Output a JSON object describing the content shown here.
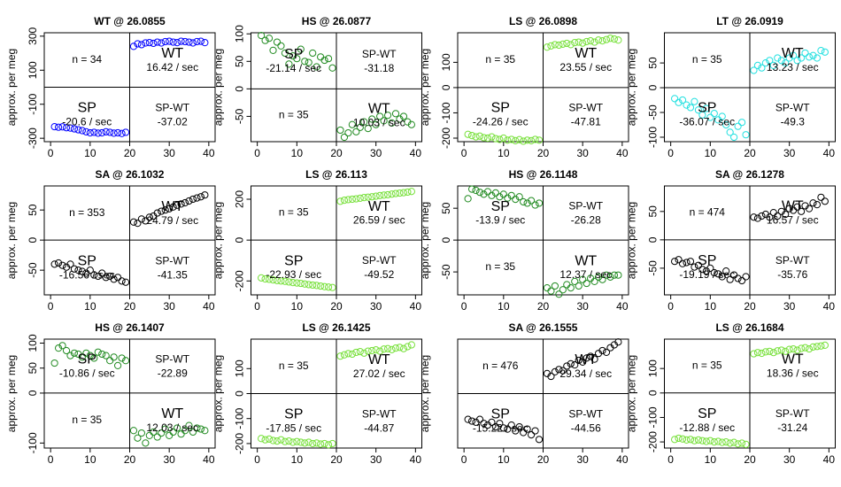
{
  "chart_data": [
    {
      "type": "scatter",
      "title": "WT @ 26.0855",
      "y_label": "approx. per meg",
      "color": "#0000ff",
      "xlim": [
        -1.6,
        41.6
      ],
      "xticks": [
        0,
        10,
        20,
        30,
        40
      ],
      "ylim": [
        -320,
        320
      ],
      "yticks": [
        -300,
        -100,
        100,
        300
      ],
      "x": [
        1,
        2,
        3,
        4,
        5,
        6,
        7,
        8,
        9,
        10,
        11,
        12,
        13,
        14,
        15,
        16,
        17,
        18,
        19,
        21,
        22,
        23,
        24,
        25,
        26,
        27,
        28,
        29,
        30,
        31,
        32,
        33,
        34,
        35,
        36,
        37,
        38,
        39
      ],
      "values": [
        -232,
        -235,
        -233,
        -238,
        -240,
        -245,
        -250,
        -255,
        -262,
        -268,
        -265,
        -270,
        -268,
        -262,
        -265,
        -270,
        -268,
        -272,
        -265,
        240,
        255,
        250,
        260,
        262,
        258,
        265,
        260,
        268,
        270,
        265,
        262,
        270,
        268,
        265,
        260,
        268,
        270,
        262
      ],
      "annotations": {
        "n": "n = 34",
        "wt": "WT",
        "wt_rate": "16.42 / sec",
        "sp": "SP",
        "sp_rate": "-20.6 / sec",
        "diff_label": "SP-WT",
        "diff": "-37.02"
      }
    },
    {
      "type": "scatter",
      "title": "HS @ 26.0877",
      "y_label": "approx. per meg",
      "color": "#228b22",
      "xlim": [
        -1.6,
        41.6
      ],
      "xticks": [
        0,
        10,
        20,
        30,
        40
      ],
      "ylim": [
        -96,
        102
      ],
      "yticks": [
        -50,
        0,
        50,
        100
      ],
      "x": [
        1,
        2,
        3,
        4,
        5,
        6,
        7,
        8,
        9,
        10,
        11,
        12,
        13,
        14,
        15,
        16,
        17,
        18,
        19,
        21,
        22,
        23,
        24,
        25,
        26,
        27,
        28,
        29,
        30,
        31,
        32,
        33,
        34,
        35,
        36,
        37,
        38,
        39
      ],
      "values": [
        97,
        88,
        92,
        70,
        85,
        78,
        65,
        45,
        60,
        55,
        72,
        50,
        48,
        65,
        40,
        58,
        52,
        55,
        38,
        -75,
        -88,
        -80,
        -65,
        -78,
        -70,
        -60,
        -72,
        -55,
        -65,
        -50,
        -58,
        -48,
        -62,
        -45,
        -55,
        -50,
        -60,
        -65
      ],
      "annotations": {
        "n": "n = 35",
        "wt": "WT",
        "wt_rate": "10.03 / sec",
        "sp": "SP",
        "sp_rate": "-21.14 / sec",
        "diff_label": "SP-WT",
        "diff": "-31.18"
      }
    },
    {
      "type": "scatter",
      "title": "LS @ 26.0898",
      "y_label": "approx. per meg",
      "color": "#77e03a",
      "xlim": [
        -1.6,
        41.6
      ],
      "xticks": [
        0,
        10,
        20,
        30,
        40
      ],
      "ylim": [
        -214,
        217
      ],
      "yticks": [
        -200,
        -100,
        0,
        100
      ],
      "x": [
        1,
        2,
        3,
        4,
        5,
        6,
        7,
        8,
        9,
        10,
        11,
        12,
        13,
        14,
        15,
        16,
        17,
        18,
        19,
        21,
        22,
        23,
        24,
        25,
        26,
        27,
        28,
        29,
        30,
        31,
        32,
        33,
        34,
        35,
        36,
        37,
        38,
        39
      ],
      "values": [
        -185,
        -190,
        -195,
        -192,
        -198,
        -200,
        -195,
        -202,
        -205,
        -200,
        -208,
        -205,
        -210,
        -206,
        -212,
        -208,
        -210,
        -205,
        -208,
        160,
        165,
        170,
        168,
        172,
        175,
        170,
        178,
        180,
        176,
        182,
        185,
        180,
        188,
        185,
        190,
        195,
        192,
        188
      ],
      "annotations": {
        "n": "n = 35",
        "wt": "WT",
        "wt_rate": "23.55 / sec",
        "sp": "SP",
        "sp_rate": "-24.26 / sec",
        "diff_label": "SP-WT",
        "diff": "-47.81"
      }
    },
    {
      "type": "scatter",
      "title": "LT @ 26.0919",
      "y_label": "approx. per meg",
      "color": "#22e0e0",
      "xlim": [
        -1.6,
        41.6
      ],
      "xticks": [
        0,
        10,
        20,
        30,
        40
      ],
      "ylim": [
        -109,
        111
      ],
      "yticks": [
        -100,
        -50,
        0,
        50
      ],
      "x": [
        1,
        2,
        3,
        4,
        5,
        6,
        7,
        8,
        9,
        10,
        11,
        12,
        13,
        14,
        15,
        16,
        17,
        18,
        19,
        21,
        22,
        23,
        24,
        25,
        26,
        27,
        28,
        29,
        30,
        31,
        32,
        33,
        34,
        35,
        36,
        37,
        38,
        39
      ],
      "values": [
        -22,
        -30,
        -25,
        -35,
        -40,
        -28,
        -45,
        -55,
        -42,
        -60,
        -52,
        -65,
        -58,
        -75,
        -90,
        -100,
        -78,
        -70,
        -95,
        35,
        45,
        40,
        50,
        55,
        45,
        60,
        55,
        50,
        60,
        65,
        55,
        60,
        70,
        62,
        65,
        60,
        75,
        72
      ],
      "annotations": {
        "n": "n = 35",
        "wt": "WT",
        "wt_rate": "13.23 / sec",
        "sp": "SP",
        "sp_rate": "-36.07 / sec",
        "diff_label": "SP-WT",
        "diff": "-49.3"
      }
    },
    {
      "type": "scatter",
      "title": "SA @ 26.1032",
      "y_label": "approx. per meg",
      "color": "#000000",
      "xlim": [
        -1.6,
        41.6
      ],
      "xticks": [
        0,
        10,
        20,
        30,
        40
      ],
      "ylim": [
        -91,
        90
      ],
      "yticks": [
        -50,
        0,
        50
      ],
      "x": [
        1,
        2,
        3,
        4,
        5,
        6,
        7,
        8,
        9,
        10,
        11,
        12,
        13,
        14,
        15,
        16,
        17,
        18,
        19,
        21,
        22,
        23,
        24,
        25,
        26,
        27,
        28,
        29,
        30,
        31,
        32,
        33,
        34,
        35,
        36,
        37,
        38,
        39
      ],
      "values": [
        -40,
        -38,
        -42,
        -45,
        -40,
        -48,
        -50,
        -52,
        -55,
        -50,
        -58,
        -60,
        -55,
        -62,
        -60,
        -65,
        -62,
        -68,
        -70,
        30,
        28,
        35,
        32,
        38,
        40,
        45,
        48,
        50,
        52,
        55,
        58,
        60,
        62,
        65,
        68,
        70,
        72,
        75
      ],
      "annotations": {
        "n": "n = 353",
        "wt": "WT",
        "wt_rate": "24.79 / sec",
        "sp": "SP",
        "sp_rate": "-16.56 / sec",
        "diff_label": "SP-WT",
        "diff": "-41.35"
      }
    },
    {
      "type": "scatter",
      "title": "LS @ 26.113",
      "y_label": "approx. per meg",
      "color": "#77e03a",
      "xlim": [
        -1.6,
        41.6
      ],
      "xticks": [
        0,
        10,
        20,
        30,
        40
      ],
      "ylim": [
        -268,
        265
      ],
      "yticks": [
        -200,
        0,
        200
      ],
      "x": [
        1,
        2,
        3,
        4,
        5,
        6,
        7,
        8,
        9,
        10,
        11,
        12,
        13,
        14,
        15,
        16,
        17,
        18,
        19,
        21,
        22,
        23,
        24,
        25,
        26,
        27,
        28,
        29,
        30,
        31,
        32,
        33,
        34,
        35,
        36,
        37,
        38,
        39
      ],
      "values": [
        -185,
        -190,
        -192,
        -195,
        -198,
        -200,
        -202,
        -205,
        -208,
        -210,
        -212,
        -215,
        -218,
        -220,
        -222,
        -225,
        -228,
        -230,
        -232,
        190,
        195,
        198,
        200,
        202,
        205,
        208,
        210,
        212,
        215,
        218,
        220,
        222,
        225,
        228,
        230,
        232,
        235,
        238
      ],
      "annotations": {
        "n": "n = 35",
        "wt": "WT",
        "wt_rate": "26.59 / sec",
        "sp": "SP",
        "sp_rate": "-22.93 / sec",
        "diff_label": "SP-WT",
        "diff": "-49.52"
      }
    },
    {
      "type": "scatter",
      "title": "HS @ 26.1148",
      "y_label": "approx. per meg",
      "color": "#228b22",
      "xlim": [
        -1.6,
        41.6
      ],
      "xticks": [
        0,
        10,
        20,
        30,
        40
      ],
      "ylim": [
        -86,
        85
      ],
      "yticks": [
        -50,
        0,
        50
      ],
      "x": [
        1,
        2,
        3,
        4,
        5,
        6,
        7,
        8,
        9,
        10,
        11,
        12,
        13,
        14,
        15,
        16,
        17,
        18,
        19,
        21,
        22,
        23,
        24,
        25,
        26,
        27,
        28,
        29,
        30,
        31,
        32,
        33,
        34,
        35,
        36,
        37,
        38,
        39
      ],
      "values": [
        65,
        80,
        78,
        75,
        72,
        76,
        70,
        74,
        68,
        72,
        66,
        70,
        64,
        68,
        60,
        58,
        62,
        55,
        58,
        -75,
        -80,
        -72,
        -85,
        -78,
        -70,
        -75,
        -65,
        -72,
        -62,
        -68,
        -60,
        -65,
        -58,
        -62,
        -55,
        -58,
        -55,
        -55
      ],
      "annotations": {
        "n": "n = 35",
        "wt": "WT",
        "wt_rate": "12.37 / sec",
        "sp": "SP",
        "sp_rate": "-13.9 / sec",
        "diff_label": "SP-WT",
        "diff": "-26.28"
      }
    },
    {
      "type": "scatter",
      "title": "SA @ 26.1278",
      "y_label": "approx. per meg",
      "color": "#000000",
      "xlim": [
        -1.6,
        41.6
      ],
      "xticks": [
        0,
        10,
        20,
        30,
        40
      ],
      "ylim": [
        -97,
        95
      ],
      "yticks": [
        -50,
        0,
        50
      ],
      "x": [
        1,
        2,
        3,
        4,
        5,
        6,
        7,
        8,
        9,
        10,
        11,
        12,
        13,
        14,
        15,
        16,
        17,
        18,
        19,
        21,
        22,
        23,
        24,
        25,
        26,
        27,
        28,
        29,
        30,
        31,
        32,
        33,
        34,
        35,
        36,
        37,
        38,
        39
      ],
      "values": [
        -38,
        -35,
        -42,
        -40,
        -38,
        -48,
        -45,
        -52,
        -55,
        -50,
        -58,
        -60,
        -65,
        -55,
        -70,
        -62,
        -68,
        -72,
        -65,
        40,
        38,
        42,
        45,
        40,
        48,
        42,
        50,
        45,
        55,
        52,
        58,
        50,
        60,
        55,
        65,
        62,
        75,
        68
      ],
      "annotations": {
        "n": "n = 474",
        "wt": "WT",
        "wt_rate": "16.57 / sec",
        "sp": "SP",
        "sp_rate": "-19.19 / sec",
        "diff_label": "SP-WT",
        "diff": "-35.76"
      }
    },
    {
      "type": "scatter",
      "title": "HS @ 26.1407",
      "y_label": "approx. per meg",
      "color": "#228b22",
      "xlim": [
        -1.6,
        41.6
      ],
      "xticks": [
        0,
        10,
        20,
        30,
        40
      ],
      "ylim": [
        -110,
        108
      ],
      "yticks": [
        -100,
        0,
        50,
        100
      ],
      "x": [
        1,
        2,
        3,
        4,
        5,
        6,
        7,
        8,
        9,
        10,
        11,
        12,
        13,
        14,
        15,
        16,
        17,
        18,
        19,
        21,
        22,
        23,
        24,
        25,
        26,
        27,
        28,
        29,
        30,
        31,
        32,
        33,
        34,
        35,
        36,
        37,
        38,
        39
      ],
      "values": [
        60,
        90,
        95,
        85,
        75,
        80,
        78,
        72,
        80,
        75,
        70,
        82,
        78,
        75,
        65,
        72,
        55,
        70,
        65,
        -75,
        -90,
        -80,
        -100,
        -85,
        -78,
        -88,
        -80,
        -72,
        -85,
        -78,
        -70,
        -82,
        -75,
        -65,
        -78,
        -70,
        -72,
        -75
      ],
      "annotations": {
        "n": "n = 35",
        "wt": "WT",
        "wt_rate": "12.03 / sec",
        "sp": "SP",
        "sp_rate": "-10.86 / sec",
        "diff_label": "SP-WT",
        "diff": "-22.89"
      }
    },
    {
      "type": "scatter",
      "title": "LS @ 26.1425",
      "y_label": "approx. per meg",
      "color": "#77e03a",
      "xlim": [
        -1.6,
        41.6
      ],
      "xticks": [
        0,
        10,
        20,
        30,
        40
      ],
      "ylim": [
        -218,
        218
      ],
      "yticks": [
        -200,
        -100,
        0,
        100
      ],
      "x": [
        1,
        2,
        3,
        4,
        5,
        6,
        7,
        8,
        9,
        10,
        11,
        12,
        13,
        14,
        15,
        16,
        17,
        18,
        19,
        21,
        22,
        23,
        24,
        25,
        26,
        27,
        28,
        29,
        30,
        31,
        32,
        33,
        34,
        35,
        36,
        37,
        38,
        39
      ],
      "values": [
        -180,
        -185,
        -182,
        -188,
        -190,
        -185,
        -192,
        -190,
        -195,
        -192,
        -195,
        -198,
        -195,
        -200,
        -198,
        -202,
        -200,
        -205,
        -200,
        150,
        155,
        160,
        158,
        165,
        168,
        162,
        170,
        172,
        175,
        170,
        178,
        180,
        176,
        182,
        185,
        180,
        188,
        195
      ],
      "annotations": {
        "n": "n = 35",
        "wt": "WT",
        "wt_rate": "27.02 / sec",
        "sp": "SP",
        "sp_rate": "-17.85 / sec",
        "diff_label": "SP-WT",
        "diff": "-44.87"
      }
    },
    {
      "type": "scatter",
      "title": "SA @ 26.1555",
      "y_label": "approx. per meg",
      "color": "#000000",
      "xlim": [
        -1.6,
        41.6
      ],
      "xticks": [
        0,
        10,
        20,
        30,
        40
      ],
      "ylim": [
        -95,
        95
      ],
      "x": [
        1,
        2,
        3,
        4,
        5,
        6,
        7,
        8,
        9,
        10,
        11,
        12,
        13,
        14,
        15,
        16,
        17,
        18,
        19,
        21,
        22,
        23,
        24,
        25,
        26,
        27,
        28,
        29,
        30,
        31,
        32,
        33,
        34,
        35,
        36,
        37,
        38,
        39
      ],
      "values": [
        -45,
        -48,
        -50,
        -45,
        -52,
        -55,
        -50,
        -58,
        -52,
        -60,
        -62,
        -55,
        -65,
        -58,
        -68,
        -62,
        -72,
        -65,
        -80,
        35,
        30,
        38,
        42,
        40,
        48,
        52,
        50,
        58,
        55,
        62,
        65,
        60,
        70,
        75,
        72,
        80,
        85,
        90
      ],
      "annotations": {
        "n": "n = 476",
        "wt": "WT",
        "wt_rate": "29.34 / sec",
        "sp": "SP",
        "sp_rate": "-15.22 / sec",
        "diff_label": "SP-WT",
        "diff": "-44.56"
      }
    },
    {
      "type": "scatter",
      "title": "LS @ 26.1684",
      "y_label": "approx. per meg",
      "color": "#77e03a",
      "xlim": [
        -1.6,
        41.6
      ],
      "xticks": [
        0,
        10,
        20,
        30,
        40
      ],
      "ylim": [
        -225,
        220
      ],
      "yticks": [
        -200,
        -100,
        0,
        100
      ],
      "x": [
        1,
        2,
        3,
        4,
        5,
        6,
        7,
        8,
        9,
        10,
        11,
        12,
        13,
        14,
        15,
        16,
        17,
        18,
        19,
        21,
        22,
        23,
        24,
        25,
        26,
        27,
        28,
        29,
        30,
        31,
        32,
        33,
        34,
        35,
        36,
        37,
        38,
        39
      ],
      "values": [
        -190,
        -185,
        -188,
        -192,
        -190,
        -195,
        -192,
        -195,
        -198,
        -195,
        -200,
        -198,
        -202,
        -200,
        -205,
        -202,
        -208,
        -205,
        -210,
        160,
        165,
        162,
        168,
        170,
        165,
        172,
        175,
        170,
        178,
        180,
        175,
        182,
        185,
        180,
        188,
        190,
        192,
        195
      ],
      "annotations": {
        "n": "n = 35",
        "wt": "WT",
        "wt_rate": "18.36 / sec",
        "sp": "SP",
        "sp_rate": "-12.88 / sec",
        "diff_label": "SP-WT",
        "diff": "-31.24"
      }
    }
  ]
}
